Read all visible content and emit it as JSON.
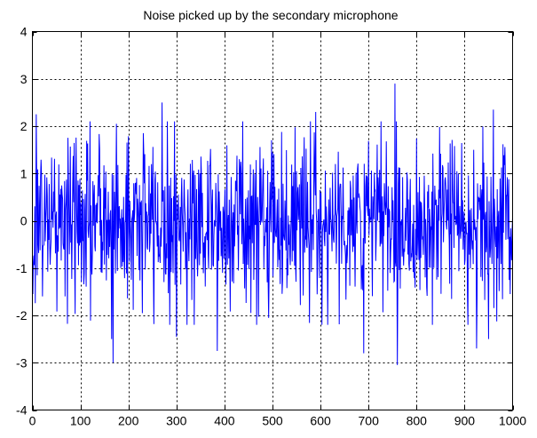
{
  "chart_data": {
    "type": "line",
    "title": "Noise picked up by the secondary microphone",
    "xlabel": "",
    "ylabel": "",
    "xlim": [
      0,
      1000
    ],
    "ylim": [
      -4,
      4
    ],
    "xticks": [
      0,
      100,
      200,
      300,
      400,
      500,
      600,
      700,
      800,
      900,
      1000
    ],
    "yticks": [
      -4,
      -3,
      -2,
      -1,
      0,
      1,
      2,
      3,
      4
    ],
    "grid": true,
    "grid_style": "dotted",
    "legend": false,
    "series": [
      {
        "color": "#0000ff",
        "n_points": 1000,
        "distribution": "gaussian white noise",
        "mean": 0,
        "std": 0.9,
        "notable_points": [
          {
            "x": 1,
            "y": -1.55
          },
          {
            "x": 8,
            "y": 2.25
          },
          {
            "x": 165,
            "y": -2.5
          },
          {
            "x": 168,
            "y": -3.0
          },
          {
            "x": 175,
            "y": 2.05
          },
          {
            "x": 270,
            "y": 2.5
          },
          {
            "x": 300,
            "y": -2.45
          },
          {
            "x": 385,
            "y": -2.75
          },
          {
            "x": 590,
            "y": 2.3
          },
          {
            "x": 690,
            "y": -2.8
          },
          {
            "x": 755,
            "y": 2.9
          },
          {
            "x": 760,
            "y": -3.05
          },
          {
            "x": 925,
            "y": -2.7
          },
          {
            "x": 950,
            "y": -2.5
          },
          {
            "x": 960,
            "y": 2.35
          },
          {
            "x": 995,
            "y": -1.55
          }
        ]
      }
    ]
  }
}
